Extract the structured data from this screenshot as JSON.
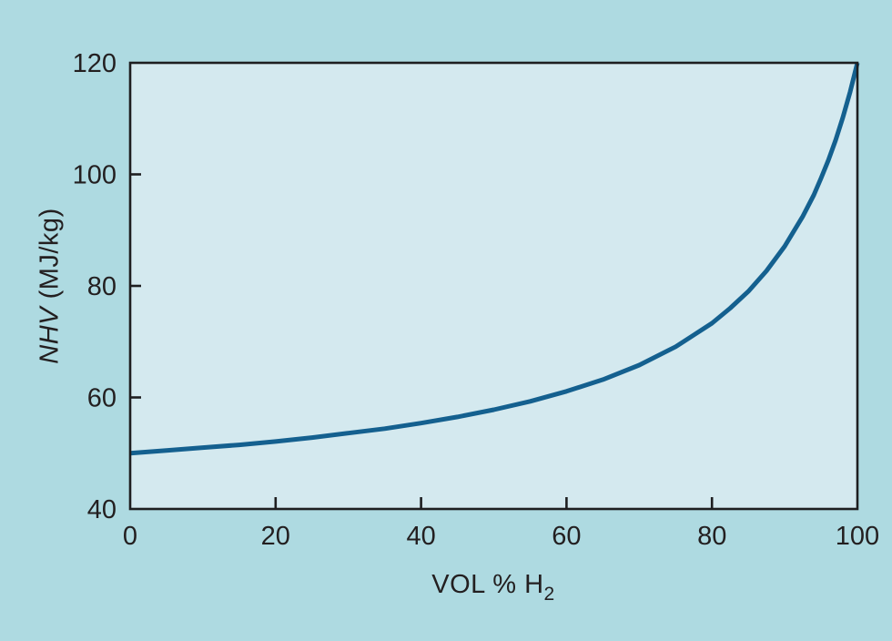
{
  "figure": {
    "background_color": "#aedae1",
    "plot_background_color": "#d4e9ef",
    "curve_color": "#14608f",
    "axis_color": "#1e1e20",
    "text_color": "#231f20"
  },
  "chart_data": {
    "type": "line",
    "title": "",
    "xlabel_main": "VOL % H",
    "xlabel_sub": "2",
    "ylabel_italic": "NHV",
    "ylabel_rest": " (MJ/kg)",
    "xlim": [
      0,
      100
    ],
    "ylim": [
      40,
      120
    ],
    "x_ticks": [
      0,
      20,
      40,
      60,
      80,
      100
    ],
    "y_ticks": [
      40,
      60,
      80,
      100,
      120
    ],
    "grid": false,
    "legend": false,
    "series": [
      {
        "x": [
          0,
          5,
          10,
          15,
          20,
          25,
          30,
          35,
          40,
          45,
          50,
          55,
          60,
          65,
          70,
          75,
          80,
          82.5,
          85,
          87.5,
          90,
          92.5,
          94,
          95,
          96,
          97,
          98,
          99,
          100
        ],
        "y": [
          50.0,
          50.5,
          51.0,
          51.5,
          52.1,
          52.8,
          53.6,
          54.4,
          55.4,
          56.5,
          57.8,
          59.3,
          61.1,
          63.2,
          65.8,
          69.1,
          73.3,
          76.0,
          79.0,
          82.7,
          87.1,
          92.5,
          96.3,
          99.3,
          102.5,
          106.1,
          110.2,
          114.8,
          120.0
        ]
      }
    ]
  }
}
